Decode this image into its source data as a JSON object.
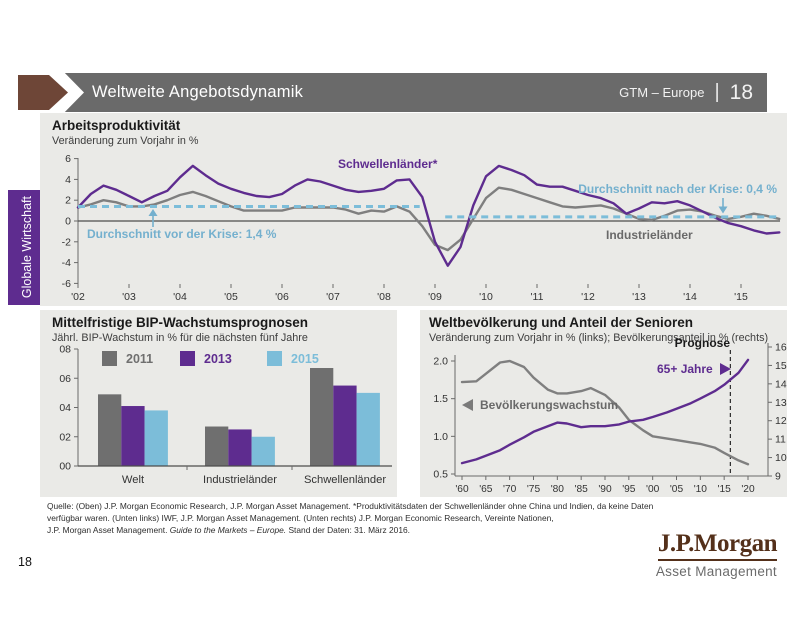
{
  "header": {
    "title": "Weltweite Angebotsdynamik",
    "right_label": "GTM – Europe",
    "divider": "|",
    "page": "18"
  },
  "sidebar": {
    "label": "Globale Wirtschaft"
  },
  "page": {
    "page_number": "18"
  },
  "colors": {
    "accent_purple": "#5E2C8F",
    "series_gray": "#7F7F7F",
    "accent_lightblue": "#7CBDD9",
    "annotation_blue": "#74B0CE",
    "header_gray": "#6A6A6A",
    "arrow_brown": "#6E4637",
    "logo_brown": "#54301A",
    "panel_background": "#EAEAE7"
  },
  "chart_data": [
    {
      "id": "productivity",
      "type": "line",
      "title": "Arbeitsproduktivität",
      "subtitle": "Veränderung zum Vorjahr in %",
      "ylim": [
        -6,
        6
      ],
      "y_ticks": [
        6,
        4,
        2,
        0,
        -2,
        -4,
        -6
      ],
      "x_start": 2002,
      "x_step": 0.25,
      "x_ticks": [
        2002,
        2003,
        2004,
        2005,
        2006,
        2007,
        2008,
        2009,
        2010,
        2011,
        2012,
        2013,
        2014,
        2015
      ],
      "x_tick_labels": [
        "'02",
        "'03",
        "'04",
        "'05",
        "'06",
        "'07",
        "'08",
        "'09",
        "'10",
        "'11",
        "'12",
        "'13",
        "'14",
        "'15"
      ],
      "grid": false,
      "series": [
        {
          "name": "Schwellenländer*",
          "color": "#5E2C8F",
          "values": [
            1.3,
            2.6,
            3.4,
            3.0,
            2.4,
            1.8,
            2.4,
            2.9,
            4.2,
            5.3,
            4.4,
            3.6,
            3.1,
            2.7,
            2.4,
            2.3,
            2.6,
            3.4,
            4.0,
            3.8,
            3.4,
            3.0,
            2.8,
            2.9,
            3.1,
            3.9,
            4.0,
            2.3,
            -2.0,
            -4.3,
            -2.5,
            1.5,
            4.3,
            5.3,
            4.9,
            4.4,
            3.5,
            3.3,
            3.3,
            2.9,
            2.5,
            2.2,
            1.7,
            0.7,
            1.2,
            1.8,
            1.7,
            1.9,
            1.5,
            0.9,
            0.3,
            -0.2,
            -0.5,
            -0.9,
            -1.2,
            -1.1
          ]
        },
        {
          "name": "Industrieländer",
          "color": "#7F7F7F",
          "values": [
            1.3,
            1.6,
            2.0,
            1.8,
            1.4,
            1.4,
            1.6,
            2.0,
            2.5,
            2.8,
            2.4,
            1.9,
            1.4,
            1.0,
            1.0,
            1.0,
            1.0,
            1.3,
            1.3,
            1.3,
            1.3,
            1.1,
            0.7,
            1.0,
            0.9,
            1.4,
            0.9,
            -0.5,
            -2.3,
            -2.8,
            -1.8,
            0.2,
            2.2,
            3.2,
            3.0,
            2.6,
            2.2,
            1.8,
            1.4,
            1.3,
            1.4,
            1.5,
            1.2,
            0.7,
            0.2,
            0.1,
            0.5,
            1.0,
            1.1,
            0.9,
            0.5,
            0.2,
            0.4,
            0.7,
            0.5,
            0.2
          ]
        }
      ],
      "reference_lines": [
        {
          "label": "Durchschnitt vor der Krise: 1,4 %",
          "value": 1.4,
          "x_from": 2002,
          "x_to": 2008.7
        },
        {
          "label": "Durchschnitt nach der Krise: 0,4 %",
          "value": 0.4,
          "x_from": 2009.2,
          "x_to": 2015.8
        }
      ]
    },
    {
      "id": "gdp_forecast",
      "type": "bar",
      "title": "Mittelfristige BIP-Wachstumsprognosen",
      "subtitle": "Jährl. BIP-Wachstum in % für die nächsten fünf Jahre",
      "categories": [
        "Welt",
        "Industrieländer",
        "Schwellenländer"
      ],
      "ylim": [
        0,
        8
      ],
      "y_tick_values": [
        0,
        2,
        4,
        6,
        8
      ],
      "y_tick_labels": [
        "00",
        "02",
        "04",
        "06",
        "08"
      ],
      "legend_position": "top",
      "series": [
        {
          "name": "2011",
          "color": "#6F6F6F",
          "bold": false,
          "values": [
            4.9,
            2.7,
            6.7
          ]
        },
        {
          "name": "2013",
          "color": "#5E2C8F",
          "bold": true,
          "values": [
            4.1,
            2.5,
            5.5
          ]
        },
        {
          "name": "2015",
          "color": "#7CBDD9",
          "bold": false,
          "values": [
            3.8,
            2.0,
            5.0
          ]
        }
      ]
    },
    {
      "id": "population",
      "type": "line",
      "title": "Weltbevölkerung und Anteil der Senioren",
      "subtitle": "Veränderung zum Vorjahr in % (links); Bevölkerungsanteil in % (rechts)",
      "x": [
        1960,
        1963,
        1965,
        1968,
        1970,
        1973,
        1975,
        1978,
        1980,
        1982,
        1985,
        1987,
        1990,
        1993,
        1995,
        1998,
        2000,
        2003,
        2005,
        2008,
        2010,
        2013,
        2015,
        2018,
        2020
      ],
      "x_ticks": [
        1960,
        1965,
        1970,
        1975,
        1980,
        1985,
        1990,
        1995,
        2000,
        2005,
        2010,
        2015,
        2020
      ],
      "x_tick_labels": [
        "'60",
        "'65",
        "'70",
        "'75",
        "'80",
        "'85",
        "'90",
        "'95",
        "'00",
        "'05",
        "'10",
        "'15",
        "'20"
      ],
      "left_ylim": [
        0.5,
        2.0
      ],
      "left_tick_values": [
        2.0,
        1.5,
        1.0,
        0.5
      ],
      "left_tick_labels": [
        "2.0",
        "1.5",
        "1.0",
        "0.5"
      ],
      "right_ylim": [
        9,
        16
      ],
      "right_tick_values": [
        16,
        15,
        14,
        13,
        12,
        11,
        10,
        9
      ],
      "right_tick_labels": [
        "16",
        "15",
        "14",
        "13",
        "12",
        "11",
        "10",
        "9"
      ],
      "forecast_line_x": 2016.3,
      "forecast_label": "Prognose",
      "series": [
        {
          "name": "Bevölkerungswachstum",
          "axis": "left",
          "color": "#7F7F7F",
          "values": [
            1.72,
            1.73,
            1.83,
            1.98,
            2.0,
            1.92,
            1.78,
            1.62,
            1.57,
            1.57,
            1.6,
            1.64,
            1.55,
            1.38,
            1.22,
            1.08,
            1.0,
            0.97,
            0.95,
            0.92,
            0.9,
            0.85,
            0.78,
            0.68,
            0.63
          ]
        },
        {
          "name": "65+ Jahre",
          "axis": "right",
          "color": "#5E2C8F",
          "values": [
            9.7,
            9.9,
            10.1,
            10.4,
            10.7,
            11.1,
            11.4,
            11.7,
            11.9,
            11.85,
            11.65,
            11.7,
            11.7,
            11.8,
            11.95,
            12.05,
            12.2,
            12.45,
            12.65,
            12.95,
            13.2,
            13.6,
            13.95,
            14.6,
            15.3
          ]
        }
      ]
    }
  ],
  "footnote": {
    "line1": "Quelle: (Oben) J.P. Morgan Economic Research, J.P. Morgan Asset Management. *Produktivitätsdaten der Schwellenländer ohne China und Indien, da keine Daten",
    "line2": "verfügbar waren. (Unten links) IWF, J.P. Morgan Asset Management. (Unten rechts) J.P. Morgan Economic Research, Vereinte Nationen,",
    "line3_normal": "J.P. Morgan Asset Management. ",
    "line3_italic": "Guide to the Markets – Europe.",
    "line3_rest": " Stand der Daten: 31. März 2016."
  },
  "logo": {
    "name": "J.P.Morgan",
    "subtitle": "Asset Management"
  }
}
